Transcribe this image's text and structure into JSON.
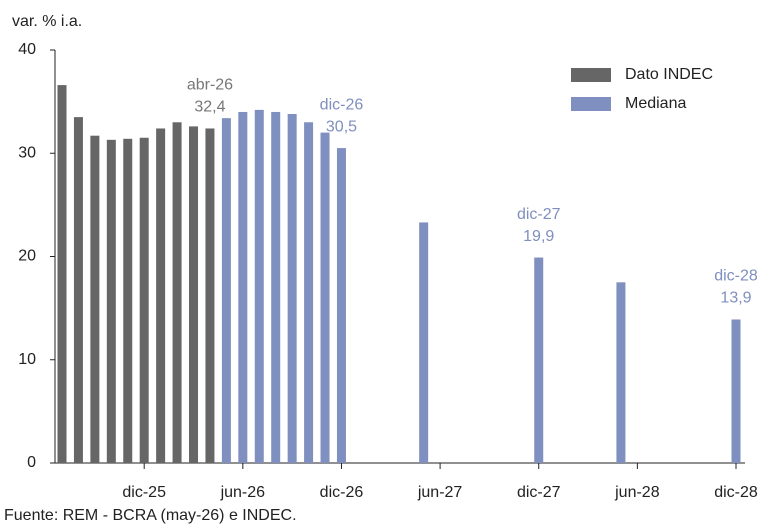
{
  "chart_data": {
    "type": "bar",
    "y_axis_label": "var. % i.a.",
    "source": "Fuente: REM - BCRA (may-26) e INDEC.",
    "categories": [
      null,
      null,
      null,
      null,
      null,
      "dic-25",
      null,
      null,
      null,
      null,
      null,
      "jun-26",
      null,
      null,
      null,
      null,
      null,
      "dic-26",
      null,
      null,
      null,
      null,
      null,
      "jun-27",
      null,
      null,
      null,
      null,
      null,
      "dic-27",
      null,
      null,
      null,
      null,
      null,
      "jun-28",
      null,
      null,
      null,
      null,
      null,
      "dic-28"
    ],
    "series": [
      {
        "name": "Dato INDEC",
        "color": "#666666",
        "values": [
          36.6,
          33.5,
          31.7,
          31.3,
          31.4,
          31.5,
          32.4,
          33.0,
          32.6,
          32.4,
          null,
          null,
          null,
          null,
          null,
          null,
          null,
          null,
          null,
          null,
          null,
          null,
          null,
          null,
          null,
          null,
          null,
          null,
          null,
          null,
          null,
          null,
          null,
          null,
          null,
          null,
          null,
          null,
          null,
          null,
          null,
          null
        ],
        "value_labels": [
          null,
          null,
          null,
          null,
          null,
          null,
          null,
          null,
          null,
          "32,4",
          null,
          null,
          null,
          null,
          null,
          null,
          null,
          null,
          null,
          null,
          null,
          null,
          null,
          null,
          null,
          null,
          null,
          null,
          null,
          null,
          null,
          null,
          null,
          null,
          null,
          null,
          null,
          null,
          null,
          null,
          null,
          null
        ],
        "point_names": [
          null,
          null,
          null,
          null,
          null,
          null,
          null,
          null,
          null,
          "abr-26",
          null,
          null,
          null,
          null,
          null,
          null,
          null,
          null,
          null,
          null,
          null,
          null,
          null,
          null,
          null,
          null,
          null,
          null,
          null,
          null,
          null,
          null,
          null,
          null,
          null,
          null,
          null,
          null,
          null,
          null,
          null,
          null
        ]
      },
      {
        "name": "Mediana",
        "color": "#7f8fbf",
        "values": [
          null,
          null,
          null,
          null,
          null,
          null,
          null,
          null,
          null,
          null,
          33.4,
          34.0,
          34.2,
          34.0,
          33.8,
          33.0,
          32.0,
          30.5,
          null,
          null,
          null,
          null,
          23.3,
          null,
          null,
          null,
          null,
          null,
          null,
          19.9,
          null,
          null,
          null,
          null,
          17.5,
          null,
          null,
          null,
          null,
          null,
          null,
          13.9
        ],
        "value_labels": [
          null,
          null,
          null,
          null,
          null,
          null,
          null,
          null,
          null,
          null,
          null,
          null,
          null,
          null,
          null,
          null,
          null,
          "30,5",
          null,
          null,
          null,
          null,
          null,
          null,
          null,
          null,
          null,
          null,
          null,
          "19,9",
          null,
          null,
          null,
          null,
          null,
          null,
          null,
          null,
          null,
          null,
          null,
          "13,9"
        ],
        "point_names": [
          null,
          null,
          null,
          null,
          null,
          null,
          null,
          null,
          null,
          null,
          null,
          null,
          null,
          null,
          null,
          null,
          null,
          "dic-26",
          null,
          null,
          null,
          null,
          null,
          null,
          null,
          null,
          null,
          null,
          null,
          "dic-27",
          null,
          null,
          null,
          null,
          null,
          null,
          null,
          null,
          null,
          null,
          null,
          "dic-28"
        ]
      }
    ],
    "ylim": [
      0,
      40
    ],
    "yticks": [
      0,
      10,
      20,
      30,
      40
    ],
    "grid": false,
    "legend": "upper right"
  }
}
